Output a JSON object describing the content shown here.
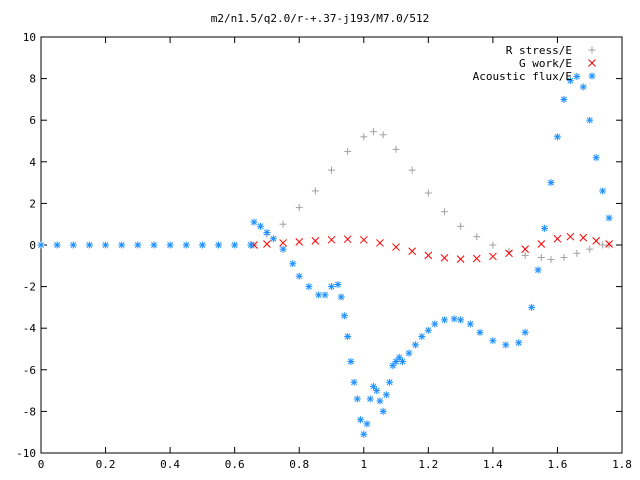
{
  "chart_data": {
    "type": "scatter",
    "title": "m2/n1.5/q2.0/r-+.37-j193/M7.0/512",
    "xlabel": "",
    "ylabel": "",
    "xlim": [
      0,
      1.8
    ],
    "ylim": [
      -10,
      10
    ],
    "x_ticks": [
      "0",
      "0.2",
      "0.4",
      "0.6",
      "0.8",
      "1",
      "1.2",
      "1.4",
      "1.6",
      "1.8"
    ],
    "y_ticks": [
      "10",
      "8",
      "6",
      "4",
      "2",
      "0",
      "-2",
      "-4",
      "-6",
      "-8",
      "-10"
    ],
    "grid": false,
    "legend_position": "top-right",
    "series": [
      {
        "name": "R stress/E",
        "marker": "+",
        "color": "#a0a0a0",
        "x": [
          0.66,
          0.7,
          0.75,
          0.8,
          0.85,
          0.9,
          0.95,
          1.0,
          1.03,
          1.06,
          1.1,
          1.15,
          1.2,
          1.25,
          1.3,
          1.35,
          1.4,
          1.45,
          1.5,
          1.55,
          1.58,
          1.62,
          1.66,
          1.7,
          1.74,
          1.76
        ],
        "y": [
          0.0,
          0.5,
          1.0,
          1.8,
          2.6,
          3.6,
          4.5,
          5.2,
          5.45,
          5.3,
          4.6,
          3.6,
          2.5,
          1.6,
          0.9,
          0.4,
          0.0,
          -0.3,
          -0.5,
          -0.6,
          -0.7,
          -0.6,
          -0.4,
          -0.2,
          0.0,
          0.0
        ]
      },
      {
        "name": "G work/E",
        "marker": "x",
        "color": "#ff0000",
        "x": [
          0.66,
          0.7,
          0.75,
          0.8,
          0.85,
          0.9,
          0.95,
          1.0,
          1.05,
          1.1,
          1.15,
          1.2,
          1.25,
          1.3,
          1.35,
          1.4,
          1.45,
          1.5,
          1.55,
          1.6,
          1.64,
          1.68,
          1.72,
          1.76
        ],
        "y": [
          0.0,
          0.05,
          0.1,
          0.15,
          0.2,
          0.25,
          0.28,
          0.25,
          0.1,
          -0.1,
          -0.3,
          -0.5,
          -0.62,
          -0.68,
          -0.65,
          -0.55,
          -0.4,
          -0.2,
          0.05,
          0.3,
          0.4,
          0.35,
          0.2,
          0.05
        ]
      },
      {
        "name": "Acoustic flux/E",
        "marker": "*",
        "color": "#1e90ff",
        "x": [
          0.0,
          0.05,
          0.1,
          0.15,
          0.2,
          0.25,
          0.3,
          0.35,
          0.4,
          0.45,
          0.5,
          0.55,
          0.6,
          0.65,
          0.66,
          0.68,
          0.7,
          0.72,
          0.75,
          0.78,
          0.8,
          0.83,
          0.86,
          0.88,
          0.9,
          0.92,
          0.93,
          0.94,
          0.95,
          0.96,
          0.97,
          0.98,
          0.99,
          1.0,
          1.01,
          1.02,
          1.03,
          1.04,
          1.05,
          1.06,
          1.07,
          1.08,
          1.09,
          1.1,
          1.11,
          1.12,
          1.14,
          1.16,
          1.18,
          1.2,
          1.22,
          1.25,
          1.28,
          1.3,
          1.33,
          1.36,
          1.4,
          1.44,
          1.48,
          1.5,
          1.52,
          1.54,
          1.56,
          1.58,
          1.6,
          1.62,
          1.64,
          1.66,
          1.68,
          1.7,
          1.72,
          1.74,
          1.76
        ],
        "y": [
          0.0,
          0.0,
          0.0,
          0.0,
          0.0,
          0.0,
          0.0,
          0.0,
          0.0,
          0.0,
          0.0,
          0.0,
          0.0,
          0.0,
          1.1,
          0.9,
          0.6,
          0.3,
          -0.2,
          -0.9,
          -1.5,
          -2.0,
          -2.4,
          -2.4,
          -2.0,
          -1.9,
          -2.5,
          -3.4,
          -4.4,
          -5.6,
          -6.6,
          -7.4,
          -8.4,
          -9.1,
          -8.6,
          -7.4,
          -6.8,
          -7.0,
          -7.5,
          -8.0,
          -7.2,
          -6.6,
          -5.8,
          -5.6,
          -5.4,
          -5.6,
          -5.2,
          -4.8,
          -4.4,
          -4.1,
          -3.8,
          -3.6,
          -3.55,
          -3.6,
          -3.8,
          -4.2,
          -4.6,
          -4.8,
          -4.7,
          -4.2,
          -3.0,
          -1.2,
          0.8,
          3.0,
          5.2,
          7.0,
          7.9,
          8.1,
          7.6,
          6.0,
          4.2,
          2.6,
          1.3
        ]
      }
    ]
  }
}
